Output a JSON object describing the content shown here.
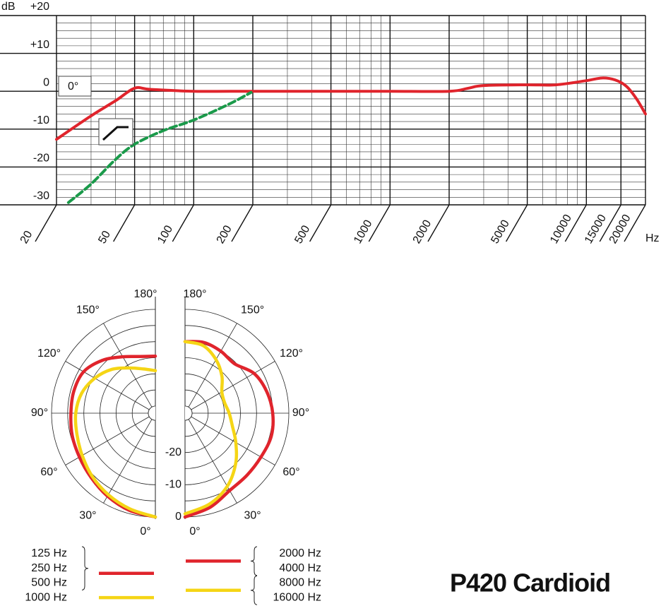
{
  "title": "P420 Cardioid",
  "chart_data": [
    {
      "type": "line",
      "xlabel": "Hz",
      "ylabel": "dB",
      "annotation": "0°",
      "log_x": true,
      "grid": true,
      "xlim": [
        20,
        20000
      ],
      "xticks": [
        20,
        50,
        100,
        200,
        500,
        1000,
        2000,
        5000,
        10000,
        15000,
        20000
      ],
      "ylim": [
        -30,
        20
      ],
      "yticks": [
        {
          "value": 20,
          "label": "+20"
        },
        {
          "value": 10,
          "label": "+10"
        },
        0,
        -10,
        -20,
        -30
      ],
      "series": [
        {
          "color": "#e0242c",
          "dash": false,
          "x": [
            20,
            30,
            40,
            50,
            60,
            100,
            200,
            500,
            1000,
            2000,
            2500,
            3000,
            5000,
            7000,
            10000,
            12000,
            14000,
            16000,
            18000,
            20000
          ],
          "values": [
            -12.7,
            -6.5,
            -2.5,
            0.8,
            0.5,
            0,
            0,
            0,
            0,
            0,
            0.8,
            1.5,
            1.7,
            1.7,
            2.8,
            3.5,
            3.0,
            1.3,
            -2,
            -6
          ]
        },
        {
          "color": "#1a9a4a",
          "dash": true,
          "x": [
            23,
            30,
            40,
            50,
            70,
            100,
            150,
            196
          ],
          "values": [
            -29.4,
            -24.5,
            -18,
            -14,
            -10.4,
            -7.6,
            -3.5,
            -0.3
          ]
        }
      ]
    },
    {
      "type": "polar",
      "half": "left",
      "rlim": [
        -30,
        0
      ],
      "rticks": [
        -20,
        -10,
        0
      ],
      "angle_ticks": [
        {
          "value": 0,
          "label": "0°"
        },
        {
          "value": 30,
          "label": "30°"
        },
        {
          "value": 60,
          "label": "60°"
        },
        {
          "value": 90,
          "label": "90°"
        },
        {
          "value": 120,
          "label": "120°"
        },
        {
          "value": 150,
          "label": "150°"
        },
        {
          "value": 180,
          "label": "180°"
        }
      ],
      "theta": [
        0,
        15,
        30,
        45,
        60,
        75,
        90,
        105,
        120,
        135,
        150,
        165,
        180
      ],
      "series": [
        {
          "name": [
            "125 Hz",
            "250 Hz",
            "500 Hz"
          ],
          "color": "#e0242c",
          "values": [
            0,
            -1,
            -2.5,
            -4,
            -5,
            -5.5,
            -6,
            -6,
            -6.5,
            -9,
            -12,
            -14,
            -14.5
          ]
        },
        {
          "name": [
            "1000 Hz"
          ],
          "color": "#f5d515",
          "values": [
            0,
            -1.5,
            -3,
            -4.5,
            -6,
            -7,
            -7.5,
            -8.5,
            -10.5,
            -13,
            -16,
            -18,
            -19
          ]
        }
      ]
    },
    {
      "type": "polar",
      "half": "right",
      "rlim": [
        -30,
        0
      ],
      "angle_ticks": [
        {
          "value": 0,
          "label": "0°"
        },
        {
          "value": 30,
          "label": "30°"
        },
        {
          "value": 60,
          "label": "60°"
        },
        {
          "value": 90,
          "label": "90°"
        },
        {
          "value": 120,
          "label": "120°"
        },
        {
          "value": 150,
          "label": "150°"
        },
        {
          "value": 180,
          "label": "180°"
        }
      ],
      "theta": [
        0,
        15,
        30,
        45,
        60,
        75,
        90,
        105,
        120,
        135,
        150,
        165,
        180
      ],
      "series": [
        {
          "name": [
            "2000 Hz",
            "4000 Hz"
          ],
          "color": "#e0242c",
          "values": [
            0,
            -2,
            -4.5,
            -5,
            -5,
            -4.5,
            -5,
            -6,
            -7.5,
            -10.5,
            -10,
            -9.5,
            -10
          ]
        },
        {
          "name": [
            "8000 Hz",
            "16000 Hz"
          ],
          "color": "#f5d515",
          "values": [
            -1,
            -3,
            -6,
            -10,
            -14,
            -17,
            -18.5,
            -19.5,
            -19,
            -16,
            -13,
            -10.5,
            -10
          ]
        }
      ]
    }
  ]
}
